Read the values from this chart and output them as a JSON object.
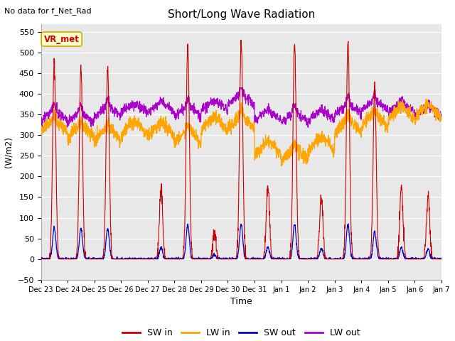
{
  "title": "Short/Long Wave Radiation",
  "no_data_text": "No data for f_Net_Rad",
  "vr_met_label": "VR_met",
  "ylabel": "(W/m2)",
  "xlabel": "Time",
  "ylim": [
    -50,
    570
  ],
  "yticks": [
    -50,
    0,
    50,
    100,
    150,
    200,
    250,
    300,
    350,
    400,
    450,
    500,
    550
  ],
  "fig_bg": "#ffffff",
  "plot_bg": "#e8e8e8",
  "colors": {
    "SW_in": "#cc0000",
    "LW_in": "#ffa500",
    "SW_out": "#0000cc",
    "LW_out": "#aa00cc"
  },
  "n_days": 15,
  "n_pts_per_day": 144,
  "tick_labels": [
    "Dec 23",
    "Dec 24",
    "Dec 25",
    "Dec 26",
    "Dec 27",
    "Dec 28",
    "Dec 29",
    "Dec 30",
    "Dec 31",
    "Jan 1",
    "Jan 2",
    "Jan 3",
    "Jan 4",
    "Jan 5",
    "Jan 6",
    "Jan 7"
  ],
  "daily_peaks_sw": [
    475,
    465,
    462,
    0,
    175,
    520,
    65,
    525,
    175,
    525,
    150,
    525,
    415,
    175,
    155
  ],
  "lw_in_base": [
    305,
    290,
    285,
    300,
    295,
    280,
    310,
    315,
    250,
    235,
    260,
    305,
    320,
    335,
    340
  ],
  "lw_out_base": [
    335,
    330,
    345,
    355,
    355,
    345,
    360,
    375,
    335,
    330,
    335,
    350,
    360,
    355,
    345
  ]
}
